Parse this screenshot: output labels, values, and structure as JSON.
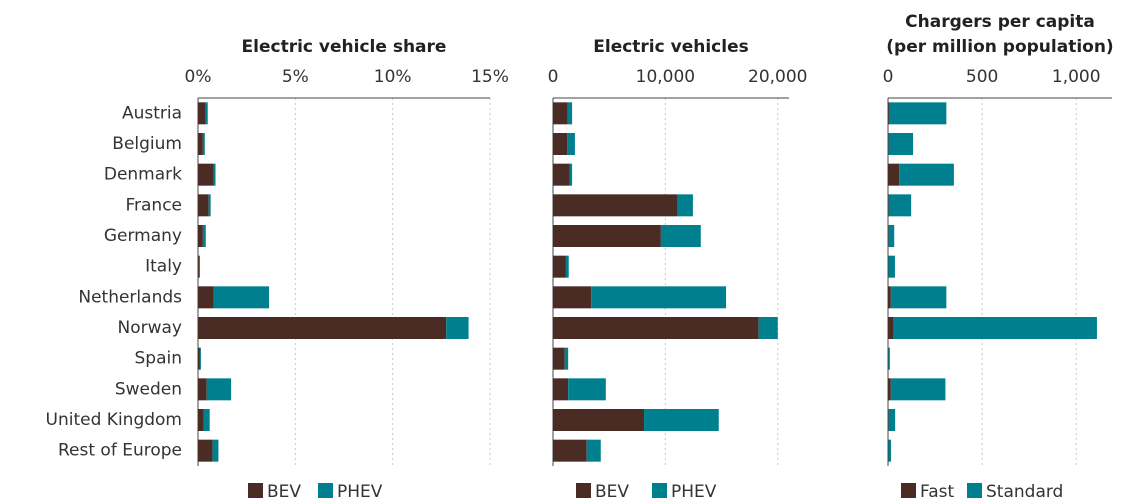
{
  "chart_data": [
    {
      "type": "stacked_bar_horizontal",
      "title": "Electric vehicle share",
      "categories": [
        "Austria",
        "Belgium",
        "Denmark",
        "France",
        "Germany",
        "Italy",
        "Netherlands",
        "Norway",
        "Spain",
        "Sweden",
        "United Kingdom",
        "Rest of Europe"
      ],
      "series": [
        {
          "name": "BEV",
          "color": "#4a2c25",
          "values": [
            0.4,
            0.25,
            0.8,
            0.55,
            0.25,
            0.05,
            0.8,
            12.75,
            0.1,
            0.45,
            0.3,
            0.75
          ]
        },
        {
          "name": "PHEV",
          "color": "#00808f",
          "values": [
            0.1,
            0.1,
            0.1,
            0.1,
            0.15,
            0.05,
            2.85,
            1.15,
            0.05,
            1.25,
            0.3,
            0.3
          ]
        }
      ],
      "xlim": [
        0,
        15
      ],
      "xticks": [
        {
          "value": 0,
          "label": "0%"
        },
        {
          "value": 5,
          "label": "5%"
        },
        {
          "value": 10,
          "label": "10%"
        },
        {
          "value": 15,
          "label": "15%"
        }
      ],
      "grid": true
    },
    {
      "type": "stacked_bar_horizontal",
      "title": "Electric vehicles",
      "series": [
        {
          "name": "BEV",
          "color": "#4a2c25",
          "values": [
            1300,
            1250,
            1500,
            11100,
            9600,
            1150,
            3400,
            18300,
            1050,
            1350,
            8100,
            3000
          ]
        },
        {
          "name": "PHEV",
          "color": "#00808f",
          "values": [
            400,
            700,
            200,
            1350,
            3550,
            250,
            12000,
            1700,
            300,
            3350,
            6650,
            1250
          ]
        }
      ],
      "xlim": [
        0,
        21000
      ],
      "xticks": [
        0,
        {
          "value": 10000,
          "label": "10,000"
        },
        {
          "value": 20000,
          "label": "20,000"
        }
      ],
      "grid": true
    },
    {
      "type": "stacked_bar_horizontal",
      "title": "Chargers per capita",
      "subtitle": "(per million population)",
      "series": [
        {
          "name": "Fast",
          "color": "#4a2c25",
          "values": [
            5,
            3,
            60,
            3,
            3,
            2,
            15,
            30,
            2,
            15,
            3,
            2
          ]
        },
        {
          "name": "Standard",
          "color": "#00808f",
          "values": [
            305,
            130,
            290,
            120,
            30,
            35,
            295,
            1080,
            8,
            290,
            35,
            14
          ]
        }
      ],
      "xlim": [
        0,
        1190
      ],
      "xticks": [
        0,
        500,
        {
          "value": 1000,
          "label": "1,000"
        }
      ],
      "grid": true
    }
  ]
}
